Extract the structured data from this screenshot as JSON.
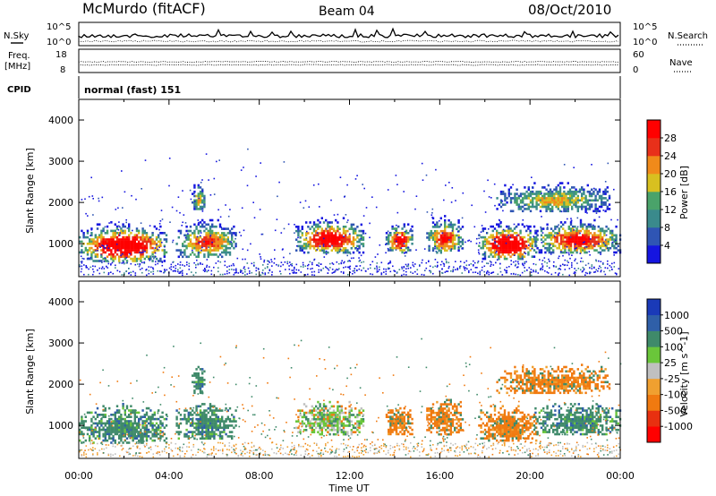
{
  "header": {
    "station": "McMurdo (fitACF)",
    "beam": "Beam 04",
    "date": "08/Oct/2010"
  },
  "panels": {
    "nsky": {
      "label": "N.Sky",
      "tick_top": "10^5",
      "tick_bottom": "10^0",
      "right_label": "N.Search",
      "right_tick_top": "10^5",
      "right_tick_bottom": "10^0"
    },
    "freq": {
      "label_line1": "Freq.",
      "label_line2": "[MHz]",
      "tick_top": "18",
      "tick_bottom": "8",
      "right_label": "Nave",
      "right_tick_top": "60",
      "right_tick_bottom": "0"
    },
    "cpid": {
      "label": "CPID",
      "value": "normal (fast) 151"
    }
  },
  "chart_data": [
    {
      "type": "heatmap",
      "name": "power",
      "xlabel": "Time UT",
      "ylabel": "Slant Range [km]",
      "xlim_hours": [
        0,
        24
      ],
      "ylim": [
        200,
        4500
      ],
      "x_ticks": [
        "00:00",
        "04:00",
        "08:00",
        "12:00",
        "16:00",
        "20:00",
        "00:00"
      ],
      "y_ticks": [
        1000,
        2000,
        3000,
        4000
      ],
      "colorbar": {
        "label": "Power [dB]",
        "ticks": [
          "4",
          "8",
          "12",
          "16",
          "20",
          "24",
          "28"
        ],
        "colors": [
          "#1515e0",
          "#2f55b4",
          "#3a8a8c",
          "#4aa36a",
          "#d8c020",
          "#f08a1a",
          "#e8301a",
          "#ff0000"
        ]
      }
    },
    {
      "type": "heatmap",
      "name": "velocity",
      "xlabel": "Time UT",
      "ylabel": "Slant Range [km]",
      "xlim_hours": [
        0,
        24
      ],
      "ylim": [
        200,
        4500
      ],
      "x_ticks": [
        "00:00",
        "04:00",
        "08:00",
        "12:00",
        "16:00",
        "20:00",
        "00:00"
      ],
      "y_ticks": [
        1000,
        2000,
        3000,
        4000
      ],
      "colorbar": {
        "label": "Velocity [m s^-1]",
        "ticks": [
          "1000",
          "500",
          "100",
          "25",
          "-25",
          "-100",
          "-500",
          "-1000"
        ],
        "colors": [
          "#1a3ab8",
          "#2f5fa8",
          "#3f8a6a",
          "#6ac63a",
          "#c0c0c0",
          "#f0a030",
          "#f07a10",
          "#e83010",
          "#ff0000"
        ]
      }
    }
  ],
  "echo_regions": [
    {
      "t0": 0.0,
      "t1": 3.9,
      "r0": 600,
      "r1": 1650,
      "core": 0.85,
      "vel": "pos"
    },
    {
      "t0": 4.3,
      "t1": 7.0,
      "r0": 700,
      "r1": 1700,
      "core": 0.4,
      "vel": "pos"
    },
    {
      "t0": 5.0,
      "t1": 5.6,
      "r0": 1800,
      "r1": 2600,
      "core": 0.1,
      "vel": "pos"
    },
    {
      "t0": 9.6,
      "t1": 12.6,
      "r0": 800,
      "r1": 1750,
      "core": 0.7,
      "vel": "mix"
    },
    {
      "t0": 13.6,
      "t1": 14.8,
      "r0": 800,
      "r1": 1650,
      "core": 0.6,
      "vel": "neg"
    },
    {
      "t0": 15.4,
      "t1": 17.0,
      "r0": 800,
      "r1": 1800,
      "core": 0.5,
      "vel": "neg"
    },
    {
      "t0": 17.7,
      "t1": 20.3,
      "r0": 650,
      "r1": 1650,
      "core": 0.9,
      "vel": "neg"
    },
    {
      "t0": 20.2,
      "t1": 24.0,
      "r0": 800,
      "r1": 1700,
      "core": 0.6,
      "vel": "pos"
    },
    {
      "t0": 18.5,
      "t1": 23.5,
      "r0": 1800,
      "r1": 2600,
      "core": 0.1,
      "vel": "neg"
    }
  ]
}
